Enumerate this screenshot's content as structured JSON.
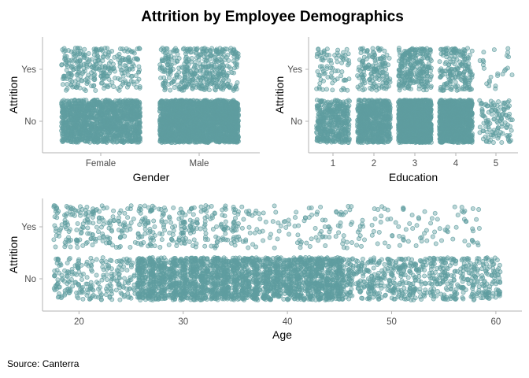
{
  "title": "Attrition by Employee Demographics",
  "caption": "Source: Canterra",
  "point_color": "#5f9ea0",
  "point_outline_color": "#5f9ea0",
  "axis_color": "#b3b3b3",
  "chart_data": [
    {
      "type": "scatter",
      "subtype": "jitter",
      "xlabel": "Gender",
      "ylabel": "Attrition",
      "x_categories": [
        "Female",
        "Male"
      ],
      "y_categories": [
        "No",
        "Yes"
      ],
      "grid": false,
      "counts": [
        {
          "x": "Female",
          "y": "No",
          "n": 1400
        },
        {
          "x": "Female",
          "y": "Yes",
          "n": 300
        },
        {
          "x": "Male",
          "y": "No",
          "n": 2250
        },
        {
          "x": "Male",
          "y": "Yes",
          "n": 420
        }
      ]
    },
    {
      "type": "scatter",
      "subtype": "jitter",
      "xlabel": "Education",
      "ylabel": "Attrition",
      "x_categories": [
        "1",
        "2",
        "3",
        "4",
        "5"
      ],
      "y_categories": [
        "No",
        "Yes"
      ],
      "grid": false,
      "counts": [
        {
          "x": "1",
          "y": "No",
          "n": 420
        },
        {
          "x": "1",
          "y": "Yes",
          "n": 80
        },
        {
          "x": "2",
          "y": "No",
          "n": 700
        },
        {
          "x": "2",
          "y": "Yes",
          "n": 150
        },
        {
          "x": "3",
          "y": "No",
          "n": 1400
        },
        {
          "x": "3",
          "y": "Yes",
          "n": 260
        },
        {
          "x": "4",
          "y": "No",
          "n": 1000
        },
        {
          "x": "4",
          "y": "Yes",
          "n": 190
        },
        {
          "x": "5",
          "y": "No",
          "n": 120
        },
        {
          "x": "5",
          "y": "Yes",
          "n": 25
        }
      ]
    },
    {
      "type": "scatter",
      "subtype": "jitter",
      "xlabel": "Age",
      "ylabel": "Attrition",
      "x_ticks": [
        20,
        30,
        40,
        50,
        60
      ],
      "xlim": [
        16.5,
        62.5
      ],
      "y_categories": [
        "No",
        "Yes"
      ],
      "grid": false,
      "counts_by_age": [
        {
          "y": "No",
          "age_range": [
            18,
            25
          ],
          "n": 230
        },
        {
          "y": "No",
          "age_range": [
            26,
            45
          ],
          "n": 2400
        },
        {
          "y": "No",
          "age_range": [
            46,
            60
          ],
          "n": 650
        },
        {
          "y": "Yes",
          "age_range": [
            18,
            25
          ],
          "n": 180
        },
        {
          "y": "Yes",
          "age_range": [
            26,
            35
          ],
          "n": 230
        },
        {
          "y": "Yes",
          "age_range": [
            36,
            58
          ],
          "n": 200
        }
      ]
    }
  ]
}
